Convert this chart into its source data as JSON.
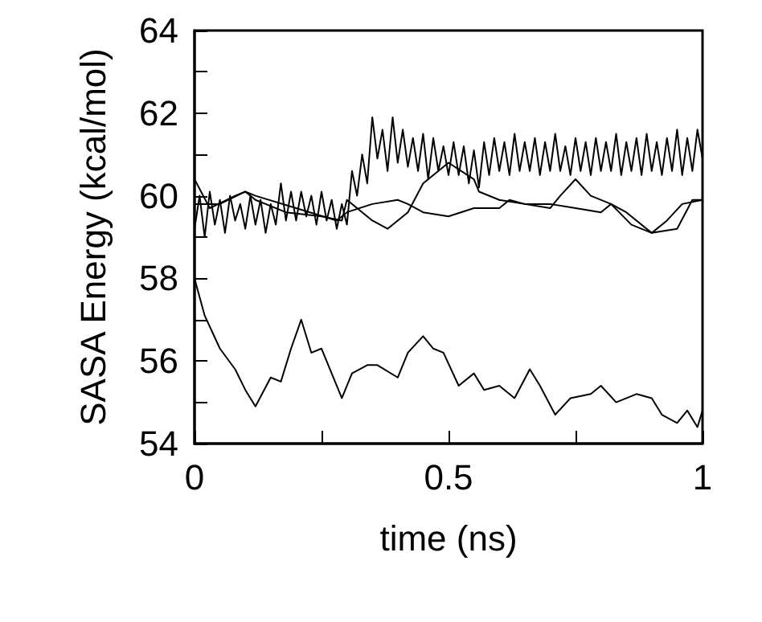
{
  "chart_data": {
    "type": "line",
    "xlabel": "time (ns)",
    "ylabel": "SASA Energy (kcal/mol)",
    "xlim": [
      0,
      1
    ],
    "ylim": [
      54,
      64
    ],
    "xticks": [
      0,
      {
        "value": 0.25,
        "label": null
      },
      0.5,
      {
        "value": 0.75,
        "label": null
      },
      1
    ],
    "yticks": [
      54,
      {
        "value": 55,
        "label": null
      },
      56,
      {
        "value": 57,
        "label": null
      },
      58,
      {
        "value": 59,
        "label": null
      },
      60,
      {
        "value": 61,
        "label": null
      },
      62,
      {
        "value": 63,
        "label": null
      },
      64
    ],
    "grid": false,
    "marker": "none",
    "line_style": "solid",
    "series": [
      {
        "color": "#000000",
        "x": [
          0,
          0.01,
          0.02,
          0.03,
          0.04,
          0.05,
          0.06,
          0.07,
          0.08,
          0.09,
          0.1,
          0.11,
          0.12,
          0.13,
          0.14,
          0.15,
          0.16,
          0.17,
          0.18,
          0.19,
          0.2,
          0.21,
          0.22,
          0.23,
          0.24,
          0.25,
          0.26,
          0.27,
          0.28,
          0.29,
          0.3,
          0.31,
          0.32,
          0.33,
          0.34,
          0.35,
          0.36,
          0.37,
          0.38,
          0.39,
          0.4,
          0.41,
          0.42,
          0.43,
          0.44,
          0.45,
          0.46,
          0.47,
          0.48,
          0.49,
          0.5,
          0.51,
          0.52,
          0.53,
          0.54,
          0.55,
          0.56,
          0.57,
          0.58,
          0.59,
          0.6,
          0.61,
          0.62,
          0.63,
          0.64,
          0.65,
          0.66,
          0.67,
          0.68,
          0.69,
          0.7,
          0.71,
          0.72,
          0.73,
          0.74,
          0.75,
          0.76,
          0.77,
          0.78,
          0.79,
          0.8,
          0.81,
          0.82,
          0.83,
          0.84,
          0.85,
          0.86,
          0.87,
          0.88,
          0.89,
          0.9,
          0.91,
          0.92,
          0.93,
          0.94,
          0.95,
          0.96,
          0.97,
          0.98,
          0.99,
          1
        ],
        "values": [
          59.2,
          60.0,
          59.0,
          60.1,
          59.3,
          59.9,
          59.1,
          60.0,
          59.4,
          59.8,
          59.2,
          60.0,
          59.3,
          59.9,
          59.1,
          59.8,
          59.3,
          60.3,
          59.4,
          60.1,
          59.4,
          60.1,
          59.5,
          60.0,
          59.3,
          60.1,
          59.4,
          59.9,
          59.2,
          59.8,
          59.3,
          60.6,
          60.0,
          61.0,
          60.3,
          61.9,
          60.9,
          61.6,
          60.6,
          61.9,
          60.8,
          61.6,
          60.7,
          61.4,
          60.6,
          61.5,
          60.4,
          61.4,
          60.6,
          61.2,
          60.5,
          61.3,
          60.5,
          61.2,
          60.3,
          61.1,
          60.2,
          61.3,
          60.5,
          61.4,
          60.6,
          61.3,
          60.5,
          61.5,
          60.6,
          61.3,
          60.6,
          61.4,
          60.5,
          61.3,
          60.6,
          61.5,
          60.6,
          61.2,
          60.5,
          61.4,
          60.6,
          61.3,
          60.5,
          61.4,
          60.6,
          61.3,
          60.6,
          61.5,
          60.5,
          61.3,
          60.6,
          61.4,
          60.5,
          61.5,
          60.6,
          61.3,
          60.5,
          61.4,
          60.6,
          61.6,
          60.5,
          61.4,
          60.6,
          61.6,
          60.9
        ]
      },
      {
        "color": "#000000",
        "x": [
          0,
          0.03,
          0.08,
          0.1,
          0.12,
          0.18,
          0.25,
          0.29,
          0.3,
          0.35,
          0.38,
          0.4,
          0.42,
          0.45,
          0.48,
          0.5,
          0.55,
          0.56,
          0.6,
          0.65,
          0.7,
          0.72,
          0.75,
          0.78,
          0.82,
          0.86,
          0.9,
          0.93,
          0.96,
          1
        ],
        "values": [
          60.4,
          59.7,
          60.0,
          60.1,
          59.9,
          59.6,
          59.5,
          59.4,
          59.9,
          59.4,
          59.2,
          59.4,
          59.6,
          60.3,
          60.6,
          60.8,
          60.4,
          60.1,
          59.9,
          59.8,
          59.7,
          60.0,
          60.4,
          60.0,
          59.8,
          59.3,
          59.1,
          59.4,
          59.8,
          59.9
        ]
      },
      {
        "color": "#000000",
        "x": [
          0,
          0.05,
          0.1,
          0.12,
          0.2,
          0.28,
          0.3,
          0.35,
          0.4,
          0.42,
          0.45,
          0.5,
          0.55,
          0.6,
          0.62,
          0.65,
          0.7,
          0.75,
          0.8,
          0.82,
          0.85,
          0.9,
          0.95,
          0.98,
          1
        ],
        "values": [
          59.8,
          59.8,
          60.1,
          60.0,
          59.7,
          59.4,
          59.6,
          59.8,
          59.9,
          59.8,
          59.6,
          59.5,
          59.7,
          59.7,
          59.9,
          59.8,
          59.8,
          59.7,
          59.6,
          59.8,
          59.6,
          59.1,
          59.2,
          59.9,
          59.9
        ]
      },
      {
        "color": "#000000",
        "x": [
          0,
          0.02,
          0.05,
          0.08,
          0.1,
          0.12,
          0.15,
          0.17,
          0.19,
          0.21,
          0.23,
          0.25,
          0.27,
          0.29,
          0.31,
          0.34,
          0.36,
          0.4,
          0.42,
          0.45,
          0.47,
          0.49,
          0.52,
          0.55,
          0.57,
          0.6,
          0.63,
          0.66,
          0.68,
          0.71,
          0.74,
          0.78,
          0.8,
          0.83,
          0.87,
          0.9,
          0.92,
          0.95,
          0.97,
          0.99,
          1
        ],
        "values": [
          58.0,
          57.1,
          56.3,
          55.8,
          55.3,
          54.9,
          55.6,
          55.5,
          56.3,
          57.0,
          56.2,
          56.3,
          55.7,
          55.1,
          55.7,
          55.9,
          55.9,
          55.6,
          56.2,
          56.6,
          56.3,
          56.2,
          55.4,
          55.7,
          55.3,
          55.4,
          55.1,
          55.8,
          55.4,
          54.7,
          55.1,
          55.2,
          55.4,
          55.0,
          55.2,
          55.1,
          54.7,
          54.5,
          54.8,
          54.4,
          54.8
        ]
      }
    ]
  }
}
